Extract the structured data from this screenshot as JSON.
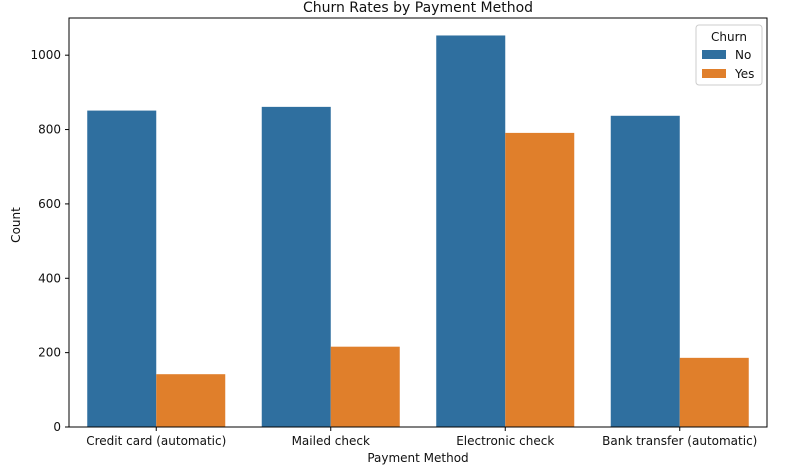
{
  "chart_data": {
    "type": "bar",
    "title": "Churn Rates by Payment Method",
    "xlabel": "Payment Method",
    "ylabel": "Count",
    "categories": [
      "Credit card (automatic)",
      "Mailed check",
      "Electronic check",
      "Bank transfer (automatic)"
    ],
    "series": [
      {
        "name": "No",
        "values": [
          851,
          861,
          1053,
          837
        ],
        "color": "#2f6f9f"
      },
      {
        "name": "Yes",
        "values": [
          142,
          216,
          791,
          186
        ],
        "color": "#e07f2b"
      }
    ],
    "ylim": [
      0,
      1100
    ],
    "yticks": [
      0,
      200,
      400,
      600,
      800,
      1000
    ],
    "grid": false,
    "legend": {
      "title": "Churn",
      "placement": "top-right"
    }
  }
}
